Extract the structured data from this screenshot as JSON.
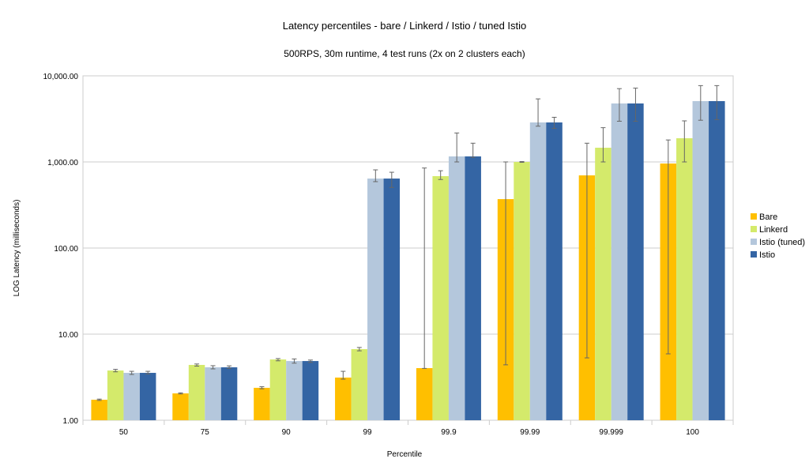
{
  "chart_data": {
    "type": "bar",
    "title": "Latency percentiles - bare / Linkerd / Istio / tuned Istio",
    "subtitle": "500RPS, 30m runtime, 4 test runs (2x on 2 clusters each)",
    "xlabel": "Percentile",
    "ylabel": "LOG Latency (milliseconds)",
    "yscale": "log",
    "ylim": [
      1,
      10000
    ],
    "yticks": [
      "1.00",
      "10.00",
      "100.00",
      "1,000.00",
      "10,000.00"
    ],
    "grid": true,
    "legend": "right",
    "categories": [
      "50",
      "75",
      "90",
      "99",
      "99.9",
      "99.99",
      "99.999",
      "100"
    ],
    "series": [
      {
        "name": "Bare",
        "color": "#FFBF00",
        "values": [
          1.73,
          2.05,
          2.38,
          3.13,
          4.03,
          370,
          698,
          959
        ],
        "error": [
          [
            1.7,
            1.76
          ],
          [
            2.02,
            2.08
          ],
          [
            2.32,
            2.45
          ],
          [
            3.0,
            3.7
          ],
          [
            4.0,
            850
          ],
          [
            4.4,
            1000
          ],
          [
            5.3,
            1650
          ],
          [
            5.9,
            1800
          ]
        ]
      },
      {
        "name": "Linkerd",
        "color": "#D4EA6B",
        "values": [
          3.78,
          4.39,
          5.08,
          6.7,
          684,
          1000,
          1462,
          1884
        ],
        "error": [
          [
            3.65,
            3.9
          ],
          [
            4.25,
            4.5
          ],
          [
            4.9,
            5.2
          ],
          [
            6.4,
            7.0
          ],
          [
            625,
            790
          ],
          [
            990,
            1010
          ],
          [
            1000,
            2500
          ],
          [
            1000,
            3000
          ]
        ]
      },
      {
        "name": "Istio (tuned)",
        "color": "#B4C7DC",
        "values": [
          3.55,
          4.12,
          4.87,
          641,
          1159,
          2875,
          4777,
          5085
        ],
        "error": [
          [
            3.4,
            3.7
          ],
          [
            3.95,
            4.3
          ],
          [
            4.6,
            5.15
          ],
          [
            590,
            809
          ],
          [
            1000,
            2170
          ],
          [
            2600,
            5400
          ],
          [
            2970,
            7100
          ],
          [
            3050,
            7700
          ]
        ]
      },
      {
        "name": "Istio",
        "color": "#3465A4",
        "values": [
          3.55,
          4.12,
          4.87,
          641,
          1159,
          2875,
          4777,
          5085
        ],
        "error": [
          [
            3.45,
            3.7
          ],
          [
            4.0,
            4.28
          ],
          [
            4.7,
            5.0
          ],
          [
            505,
            759
          ],
          [
            1130,
            1650
          ],
          [
            2450,
            3300
          ],
          [
            2970,
            7200
          ],
          [
            3100,
            7700
          ]
        ]
      }
    ]
  }
}
